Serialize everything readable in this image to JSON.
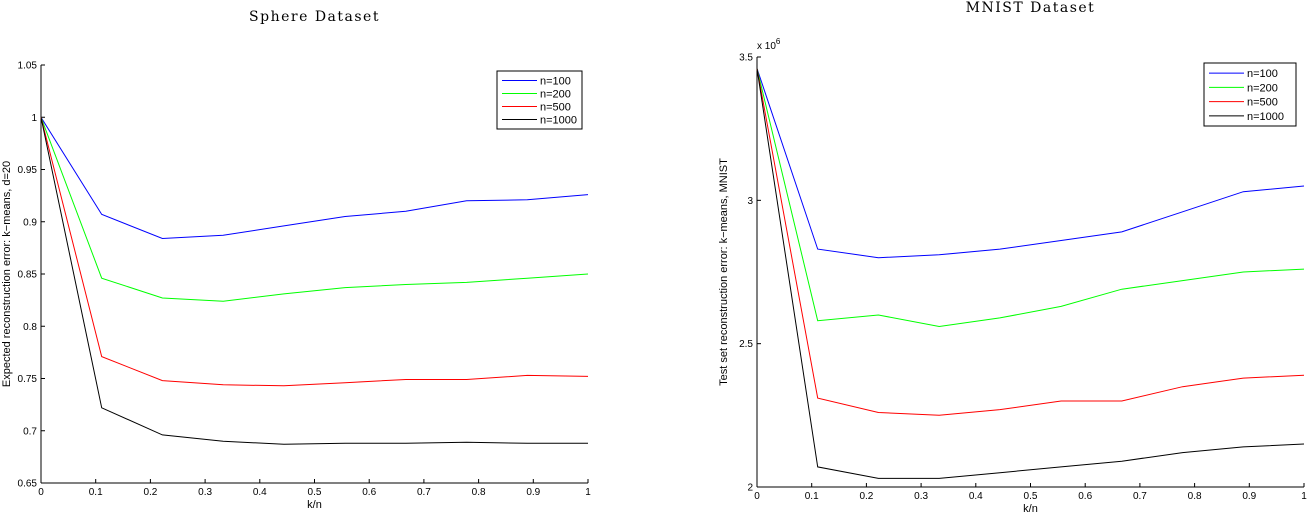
{
  "chart_data": [
    {
      "type": "line",
      "title": "Sphere Dataset",
      "xlabel": "k/n",
      "ylabel": "Expected reconstruction error: k−means, d=20",
      "xlim": [
        0,
        1
      ],
      "ylim": [
        0.65,
        1.05
      ],
      "xticks": [
        "0",
        "0.1",
        "0.2",
        "0.3",
        "0.4",
        "0.5",
        "0.6",
        "0.7",
        "0.8",
        "0.9",
        "1"
      ],
      "yticks": [
        "0.65",
        "0.7",
        "0.75",
        "0.8",
        "0.85",
        "0.9",
        "0.95",
        "1",
        "1.05"
      ],
      "y_multiplier": "",
      "legend_position": "top-right",
      "x": [
        0,
        0.111,
        0.222,
        0.333,
        0.444,
        0.556,
        0.667,
        0.778,
        0.889,
        1.0
      ],
      "series": [
        {
          "name": "n=100",
          "color": "#0000ff",
          "values": [
            1.0,
            0.907,
            0.884,
            0.887,
            0.896,
            0.905,
            0.91,
            0.92,
            0.921,
            0.926
          ]
        },
        {
          "name": "n=200",
          "color": "#00ff00",
          "values": [
            1.0,
            0.846,
            0.827,
            0.824,
            0.831,
            0.837,
            0.84,
            0.842,
            0.846,
            0.85
          ]
        },
        {
          "name": "n=500",
          "color": "#ff0000",
          "values": [
            1.0,
            0.771,
            0.748,
            0.744,
            0.743,
            0.746,
            0.749,
            0.749,
            0.753,
            0.752
          ]
        },
        {
          "name": "n=1000",
          "color": "#000000",
          "values": [
            1.0,
            0.722,
            0.696,
            0.69,
            0.687,
            0.688,
            0.688,
            0.689,
            0.688,
            0.688
          ]
        }
      ]
    },
    {
      "type": "line",
      "title": "MNIST Dataset",
      "xlabel": "k/n",
      "ylabel": "Test set reconstruction error: k−means, MNIST",
      "xlim": [
        0,
        1
      ],
      "ylim": [
        2.0,
        3.5
      ],
      "xticks": [
        "0",
        "0.1",
        "0.2",
        "0.3",
        "0.4",
        "0.5",
        "0.6",
        "0.7",
        "0.8",
        "0.9",
        "1"
      ],
      "yticks": [
        "2",
        "2.5",
        "3",
        "3.5"
      ],
      "y_multiplier": "x 10",
      "y_multiplier_exp": "6",
      "legend_position": "top-right",
      "x": [
        0,
        0.111,
        0.222,
        0.333,
        0.444,
        0.556,
        0.667,
        0.778,
        0.889,
        1.0
      ],
      "series": [
        {
          "name": "n=100",
          "color": "#0000ff",
          "values": [
            3.46,
            2.83,
            2.8,
            2.81,
            2.83,
            2.86,
            2.89,
            2.96,
            3.03,
            3.05
          ]
        },
        {
          "name": "n=200",
          "color": "#00ff00",
          "values": [
            3.46,
            2.58,
            2.6,
            2.56,
            2.59,
            2.63,
            2.69,
            2.72,
            2.75,
            2.76
          ]
        },
        {
          "name": "n=500",
          "color": "#ff0000",
          "values": [
            3.46,
            2.31,
            2.26,
            2.25,
            2.27,
            2.3,
            2.3,
            2.35,
            2.38,
            2.39
          ]
        },
        {
          "name": "n=1000",
          "color": "#000000",
          "values": [
            3.46,
            2.07,
            2.03,
            2.03,
            2.05,
            2.07,
            2.09,
            2.12,
            2.14,
            2.15
          ]
        }
      ]
    }
  ]
}
